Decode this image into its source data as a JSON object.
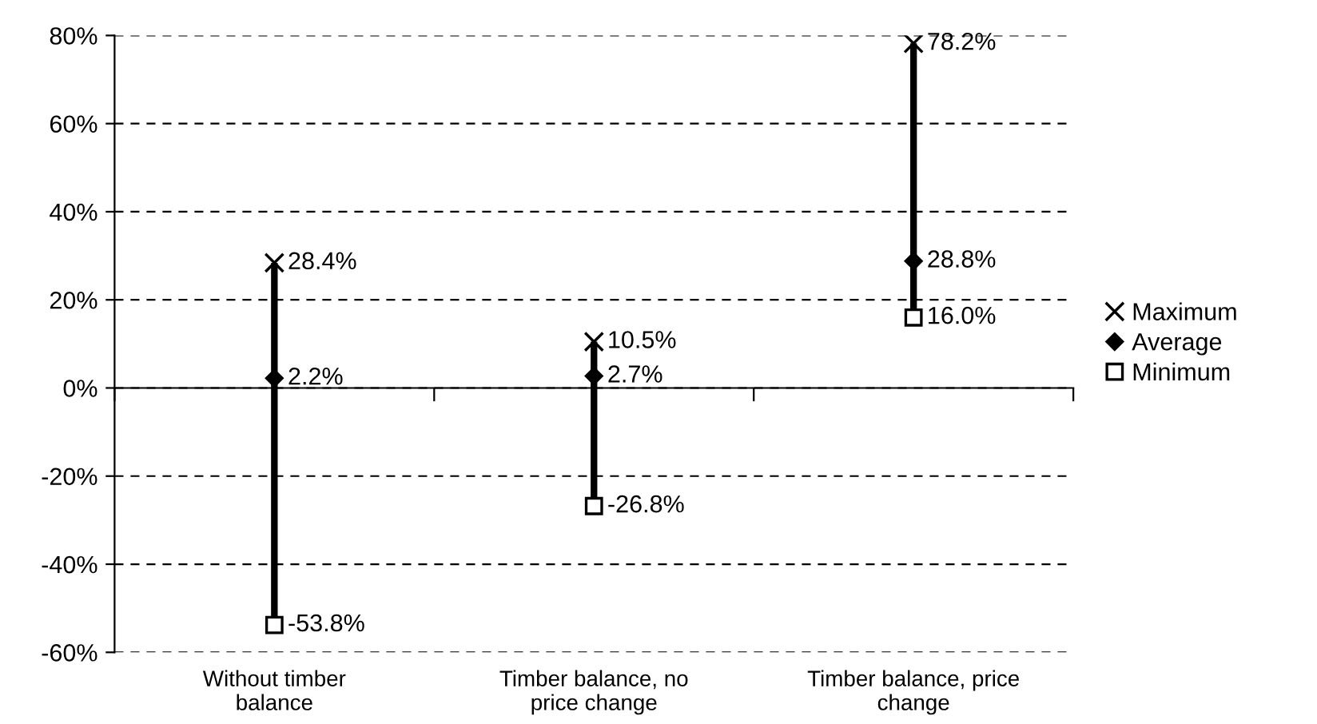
{
  "chart_data": {
    "type": "scatter",
    "categories": [
      "Without timber\nbalance",
      "Timber balance, no\nprice change",
      "Timber balance, price\nchange"
    ],
    "series": [
      {
        "name": "Maximum",
        "color": "#000000",
        "marker": "cross",
        "values": [
          28.4,
          10.5,
          78.2
        ],
        "value_labels": [
          "28.4%",
          "10.5%",
          "78.2%"
        ]
      },
      {
        "name": "Average",
        "color": "#000000",
        "marker": "diamond",
        "values": [
          2.2,
          2.7,
          28.8
        ],
        "value_labels": [
          "2.2%",
          "2.7%",
          "28.8%"
        ]
      },
      {
        "name": "Minimum",
        "color": "#000000",
        "marker": "square",
        "values": [
          -53.8,
          -26.8,
          16.0
        ],
        "value_labels": [
          "-53.8%",
          "-26.8%",
          "16.0%"
        ]
      }
    ],
    "ylim": [
      -60,
      80
    ],
    "yticks": [
      {
        "value": -60,
        "label": "-60%"
      },
      {
        "value": -40,
        "label": "-40%"
      },
      {
        "value": -20,
        "label": "-20%"
      },
      {
        "value": 0,
        "label": "0%"
      },
      {
        "value": 20,
        "label": "20%"
      },
      {
        "value": 40,
        "label": "40%"
      },
      {
        "value": 60,
        "label": "60%"
      },
      {
        "value": 80,
        "label": "80%"
      }
    ],
    "grid": "y",
    "legend": "right"
  }
}
